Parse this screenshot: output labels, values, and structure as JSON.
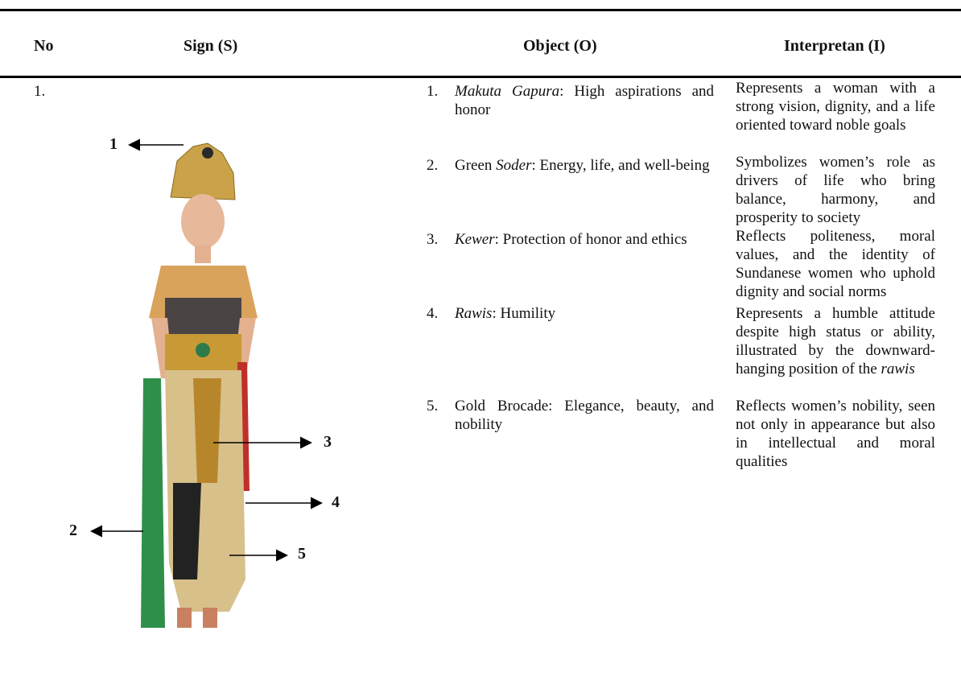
{
  "header": {
    "columns": [
      "No",
      "Sign (S)",
      "Object (O)",
      "Interpretan (I)"
    ]
  },
  "table": {
    "rows": [
      {
        "no": "1.",
        "sign_labels": [
          "1",
          "2",
          "3",
          "4",
          "5"
        ],
        "objects": [
          {
            "number": "1.",
            "parts": [
              {
                "text": "Makuta Gapura",
                "italic": true
              },
              ": High aspirations and honor"
            ]
          },
          {
            "number": "2.",
            "parts": [
              "Green ",
              {
                "text": "Soder",
                "italic": true
              },
              ": Energy, life, and well-being"
            ]
          },
          {
            "number": "3.",
            "parts": [
              {
                "text": "Kewer",
                "italic": true
              },
              ": Protection of honor and ethics"
            ]
          },
          {
            "number": "4.",
            "parts": [
              {
                "text": "Rawis",
                "italic": true
              },
              ": Humility"
            ]
          },
          {
            "number": "5.",
            "parts": [
              "Gold Brocade: Elegance, beauty, and nobility"
            ]
          }
        ],
        "interpretations": [
          {
            "parts": [
              "Represents a woman with a strong vision, dignity, and a life oriented toward noble goals"
            ]
          },
          {
            "parts": [
              "Symbolizes women’s role as drivers of life who bring balance, harmony, and prosperity to society"
            ]
          },
          {
            "parts": [
              "Reflects politeness, moral values, and the identity of Sundanese women who uphold dignity and social norms"
            ]
          },
          {
            "parts": [
              "Represents a humble attitude despite high status or ability, illustrated by the downward-hanging position of the ",
              {
                "text": "rawis",
                "italic": true
              }
            ]
          },
          {
            "parts": [
              "Reflects women’s nobility, seen not only in appearance but also in intellectual and moral qualities"
            ]
          }
        ]
      }
    ]
  }
}
